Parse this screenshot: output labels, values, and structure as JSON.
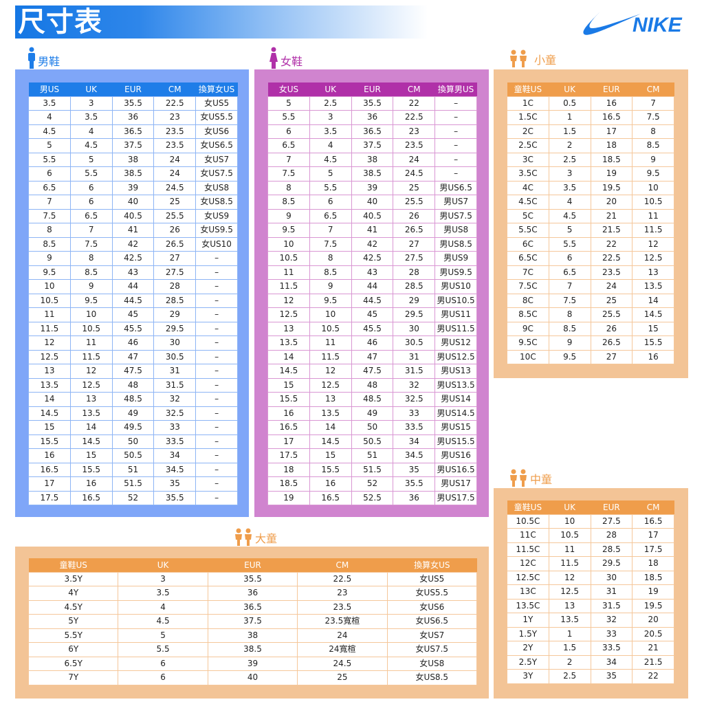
{
  "title": "尺寸表",
  "logo": {
    "text": "NIKE",
    "color": "#1a7ae6"
  },
  "colors": {
    "men": "#1e7de8",
    "women": "#b030a8",
    "kids": "#ef9d4b"
  },
  "men": {
    "label": "男鞋",
    "headers": [
      "男US",
      "UK",
      "EUR",
      "CM",
      "換算女US"
    ],
    "rows": [
      [
        "3.5",
        "3",
        "35.5",
        "22.5",
        "女US5"
      ],
      [
        "4",
        "3.5",
        "36",
        "23",
        "女US5.5"
      ],
      [
        "4.5",
        "4",
        "36.5",
        "23.5",
        "女US6"
      ],
      [
        "5",
        "4.5",
        "37.5",
        "23.5",
        "女US6.5"
      ],
      [
        "5.5",
        "5",
        "38",
        "24",
        "女US7"
      ],
      [
        "6",
        "5.5",
        "38.5",
        "24",
        "女US7.5"
      ],
      [
        "6.5",
        "6",
        "39",
        "24.5",
        "女US8"
      ],
      [
        "7",
        "6",
        "40",
        "25",
        "女US8.5"
      ],
      [
        "7.5",
        "6.5",
        "40.5",
        "25.5",
        "女US9"
      ],
      [
        "8",
        "7",
        "41",
        "26",
        "女US9.5"
      ],
      [
        "8.5",
        "7.5",
        "42",
        "26.5",
        "女US10"
      ],
      [
        "9",
        "8",
        "42.5",
        "27",
        "–"
      ],
      [
        "9.5",
        "8.5",
        "43",
        "27.5",
        "–"
      ],
      [
        "10",
        "9",
        "44",
        "28",
        "–"
      ],
      [
        "10.5",
        "9.5",
        "44.5",
        "28.5",
        "–"
      ],
      [
        "11",
        "10",
        "45",
        "29",
        "–"
      ],
      [
        "11.5",
        "10.5",
        "45.5",
        "29.5",
        "–"
      ],
      [
        "12",
        "11",
        "46",
        "30",
        "–"
      ],
      [
        "12.5",
        "11.5",
        "47",
        "30.5",
        "–"
      ],
      [
        "13",
        "12",
        "47.5",
        "31",
        "–"
      ],
      [
        "13.5",
        "12.5",
        "48",
        "31.5",
        "–"
      ],
      [
        "14",
        "13",
        "48.5",
        "32",
        "–"
      ],
      [
        "14.5",
        "13.5",
        "49",
        "32.5",
        "–"
      ],
      [
        "15",
        "14",
        "49.5",
        "33",
        "–"
      ],
      [
        "15.5",
        "14.5",
        "50",
        "33.5",
        "–"
      ],
      [
        "16",
        "15",
        "50.5",
        "34",
        "–"
      ],
      [
        "16.5",
        "15.5",
        "51",
        "34.5",
        "–"
      ],
      [
        "17",
        "16",
        "51.5",
        "35",
        "–"
      ],
      [
        "17.5",
        "16.5",
        "52",
        "35.5",
        "–"
      ]
    ]
  },
  "women": {
    "label": "女鞋",
    "headers": [
      "女US",
      "UK",
      "EUR",
      "CM",
      "換算男US"
    ],
    "rows": [
      [
        "5",
        "2.5",
        "35.5",
        "22",
        "–"
      ],
      [
        "5.5",
        "3",
        "36",
        "22.5",
        "–"
      ],
      [
        "6",
        "3.5",
        "36.5",
        "23",
        "–"
      ],
      [
        "6.5",
        "4",
        "37.5",
        "23.5",
        "–"
      ],
      [
        "7",
        "4.5",
        "38",
        "24",
        "–"
      ],
      [
        "7.5",
        "5",
        "38.5",
        "24.5",
        "–"
      ],
      [
        "8",
        "5.5",
        "39",
        "25",
        "男US6.5"
      ],
      [
        "8.5",
        "6",
        "40",
        "25.5",
        "男US7"
      ],
      [
        "9",
        "6.5",
        "40.5",
        "26",
        "男US7.5"
      ],
      [
        "9.5",
        "7",
        "41",
        "26.5",
        "男US8"
      ],
      [
        "10",
        "7.5",
        "42",
        "27",
        "男US8.5"
      ],
      [
        "10.5",
        "8",
        "42.5",
        "27.5",
        "男US9"
      ],
      [
        "11",
        "8.5",
        "43",
        "28",
        "男US9.5"
      ],
      [
        "11.5",
        "9",
        "44",
        "28.5",
        "男US10"
      ],
      [
        "12",
        "9.5",
        "44.5",
        "29",
        "男US10.5"
      ],
      [
        "12.5",
        "10",
        "45",
        "29.5",
        "男US11"
      ],
      [
        "13",
        "10.5",
        "45.5",
        "30",
        "男US11.5"
      ],
      [
        "13.5",
        "11",
        "46",
        "30.5",
        "男US12"
      ],
      [
        "14",
        "11.5",
        "47",
        "31",
        "男US12.5"
      ],
      [
        "14.5",
        "12",
        "47.5",
        "31.5",
        "男US13"
      ],
      [
        "15",
        "12.5",
        "48",
        "32",
        "男US13.5"
      ],
      [
        "15.5",
        "13",
        "48.5",
        "32.5",
        "男US14"
      ],
      [
        "16",
        "13.5",
        "49",
        "33",
        "男US14.5"
      ],
      [
        "16.5",
        "14",
        "50",
        "33.5",
        "男US15"
      ],
      [
        "17",
        "14.5",
        "50.5",
        "34",
        "男US15.5"
      ],
      [
        "17.5",
        "15",
        "51",
        "34.5",
        "男US16"
      ],
      [
        "18",
        "15.5",
        "51.5",
        "35",
        "男US16.5"
      ],
      [
        "18.5",
        "16",
        "52",
        "35.5",
        "男US17"
      ],
      [
        "19",
        "16.5",
        "52.5",
        "36",
        "男US17.5"
      ]
    ]
  },
  "little_kids": {
    "label": "小童",
    "headers": [
      "童鞋US",
      "UK",
      "EUR",
      "CM"
    ],
    "rows": [
      [
        "1C",
        "0.5",
        "16",
        "7"
      ],
      [
        "1.5C",
        "1",
        "16.5",
        "7.5"
      ],
      [
        "2C",
        "1.5",
        "17",
        "8"
      ],
      [
        "2.5C",
        "2",
        "18",
        "8.5"
      ],
      [
        "3C",
        "2.5",
        "18.5",
        "9"
      ],
      [
        "3.5C",
        "3",
        "19",
        "9.5"
      ],
      [
        "4C",
        "3.5",
        "19.5",
        "10"
      ],
      [
        "4.5C",
        "4",
        "20",
        "10.5"
      ],
      [
        "5C",
        "4.5",
        "21",
        "11"
      ],
      [
        "5.5C",
        "5",
        "21.5",
        "11.5"
      ],
      [
        "6C",
        "5.5",
        "22",
        "12"
      ],
      [
        "6.5C",
        "6",
        "22.5",
        "12.5"
      ],
      [
        "7C",
        "6.5",
        "23.5",
        "13"
      ],
      [
        "7.5C",
        "7",
        "24",
        "13.5"
      ],
      [
        "8C",
        "7.5",
        "25",
        "14"
      ],
      [
        "8.5C",
        "8",
        "25.5",
        "14.5"
      ],
      [
        "9C",
        "8.5",
        "26",
        "15"
      ],
      [
        "9.5C",
        "9",
        "26.5",
        "15.5"
      ],
      [
        "10C",
        "9.5",
        "27",
        "16"
      ]
    ]
  },
  "mid_kids": {
    "label": "中童",
    "headers": [
      "童鞋US",
      "UK",
      "EUR",
      "CM"
    ],
    "rows": [
      [
        "10.5C",
        "10",
        "27.5",
        "16.5"
      ],
      [
        "11C",
        "10.5",
        "28",
        "17"
      ],
      [
        "11.5C",
        "11",
        "28.5",
        "17.5"
      ],
      [
        "12C",
        "11.5",
        "29.5",
        "18"
      ],
      [
        "12.5C",
        "12",
        "30",
        "18.5"
      ],
      [
        "13C",
        "12.5",
        "31",
        "19"
      ],
      [
        "13.5C",
        "13",
        "31.5",
        "19.5"
      ],
      [
        "1Y",
        "13.5",
        "32",
        "20"
      ],
      [
        "1.5Y",
        "1",
        "33",
        "20.5"
      ],
      [
        "2Y",
        "1.5",
        "33.5",
        "21"
      ],
      [
        "2.5Y",
        "2",
        "34",
        "21.5"
      ],
      [
        "3Y",
        "2.5",
        "35",
        "22"
      ]
    ]
  },
  "big_kids": {
    "label": "大童",
    "headers": [
      "童鞋US",
      "UK",
      "EUR",
      "CM",
      "換算女US"
    ],
    "rows": [
      [
        "3.5Y",
        "3",
        "35.5",
        "22.5",
        "女US5"
      ],
      [
        "4Y",
        "3.5",
        "36",
        "23",
        "女US5.5"
      ],
      [
        "4.5Y",
        "4",
        "36.5",
        "23.5",
        "女US6"
      ],
      [
        "5Y",
        "4.5",
        "37.5",
        "23.5寬楦",
        "女US6.5"
      ],
      [
        "5.5Y",
        "5",
        "38",
        "24",
        "女US7"
      ],
      [
        "6Y",
        "5.5",
        "38.5",
        "24寬楦",
        "女US7.5"
      ],
      [
        "6.5Y",
        "6",
        "39",
        "24.5",
        "女US8"
      ],
      [
        "7Y",
        "6",
        "40",
        "25",
        "女US8.5"
      ]
    ]
  }
}
